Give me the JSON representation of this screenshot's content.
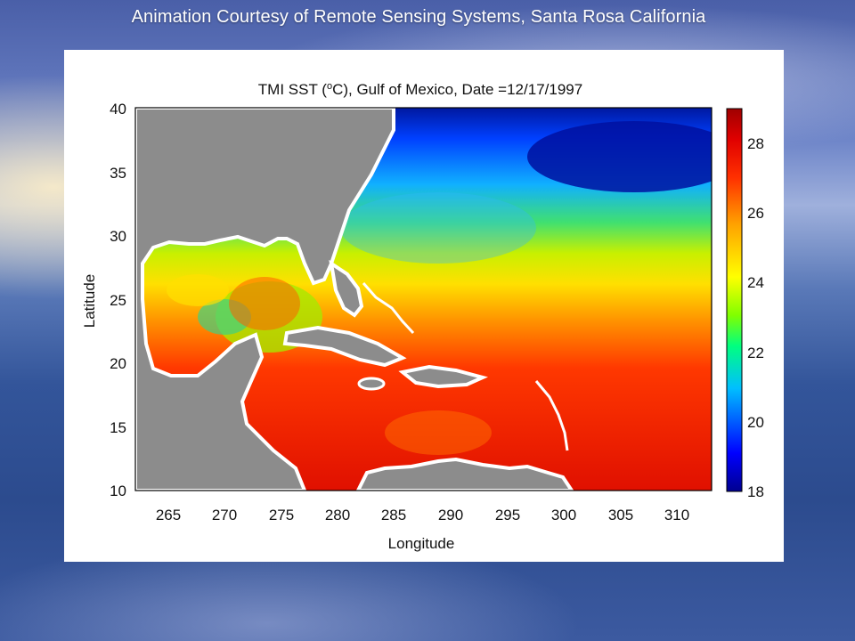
{
  "banner": {
    "text": "Animation Courtesy of Remote Sensing Systems, Santa Rosa California"
  },
  "map": {
    "title_prefix": "TMI SST (",
    "title_deg": "o",
    "title_suffix": "C), Gulf of Mexico, Date =12/17/1997",
    "xlabel": "Longitude",
    "ylabel": "Latitude",
    "xlim": [
      262,
      313
    ],
    "ylim": [
      10,
      40
    ],
    "xticks": [
      "265",
      "270",
      "275",
      "280",
      "285",
      "290",
      "295",
      "300",
      "305",
      "310"
    ],
    "yticks": [
      "10",
      "15",
      "20",
      "25",
      "30",
      "35",
      "40"
    ],
    "colorbar": {
      "range": [
        18,
        29
      ],
      "ticks": [
        "18",
        "20",
        "22",
        "24",
        "26",
        "28"
      ],
      "colors": [
        "#00008f",
        "#0000ff",
        "#00bfff",
        "#00ff80",
        "#80ff00",
        "#ffff00",
        "#ffa000",
        "#ff3000",
        "#e00000",
        "#a00000"
      ]
    },
    "land_color": "#8c8c8c",
    "coast_color": "#ffffff"
  }
}
